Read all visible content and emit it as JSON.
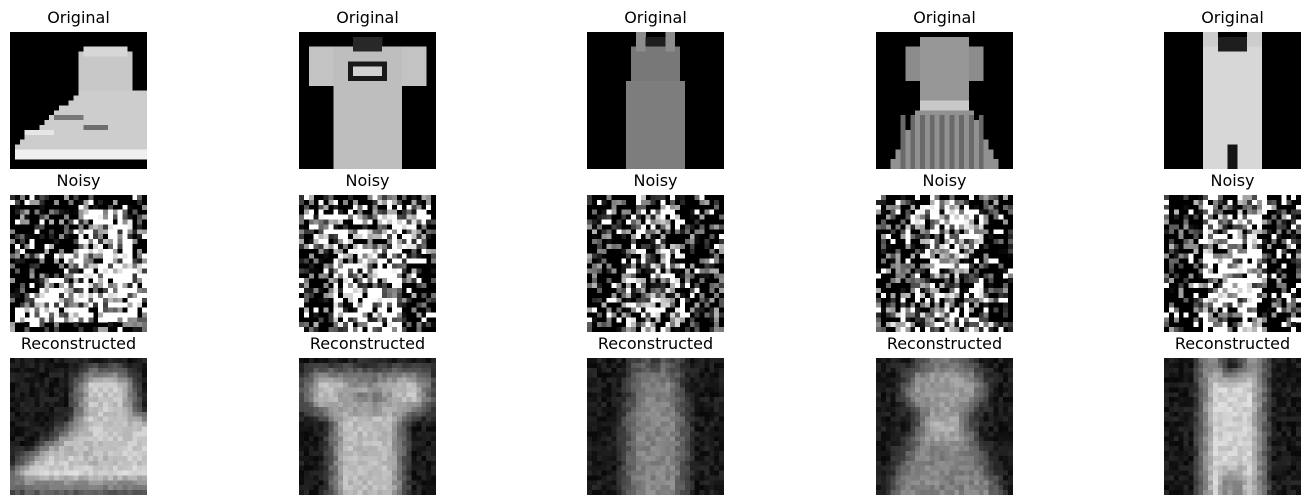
{
  "figure": {
    "rows": [
      {
        "kind": "original",
        "titles": [
          "Original",
          "Original",
          "Original",
          "Original",
          "Original"
        ],
        "items": [
          "ankle-boot",
          "t-shirt",
          "tank-top-dark",
          "dress",
          "tank-top-light"
        ]
      },
      {
        "kind": "noisy",
        "titles": [
          "Noisy",
          "Noisy",
          "Noisy",
          "Noisy",
          "Noisy"
        ],
        "items": [
          "ankle-boot",
          "t-shirt",
          "tank-top-dark",
          "dress",
          "tank-top-light"
        ]
      },
      {
        "kind": "reconstructed",
        "titles": [
          "Reconstructed",
          "Reconstructed",
          "Reconstructed",
          "Reconstructed",
          "Reconstructed"
        ],
        "items": [
          "ankle-boot",
          "t-shirt",
          "tank-top-dark",
          "dress",
          "tank-top-light"
        ]
      }
    ],
    "colormap": "gray"
  }
}
